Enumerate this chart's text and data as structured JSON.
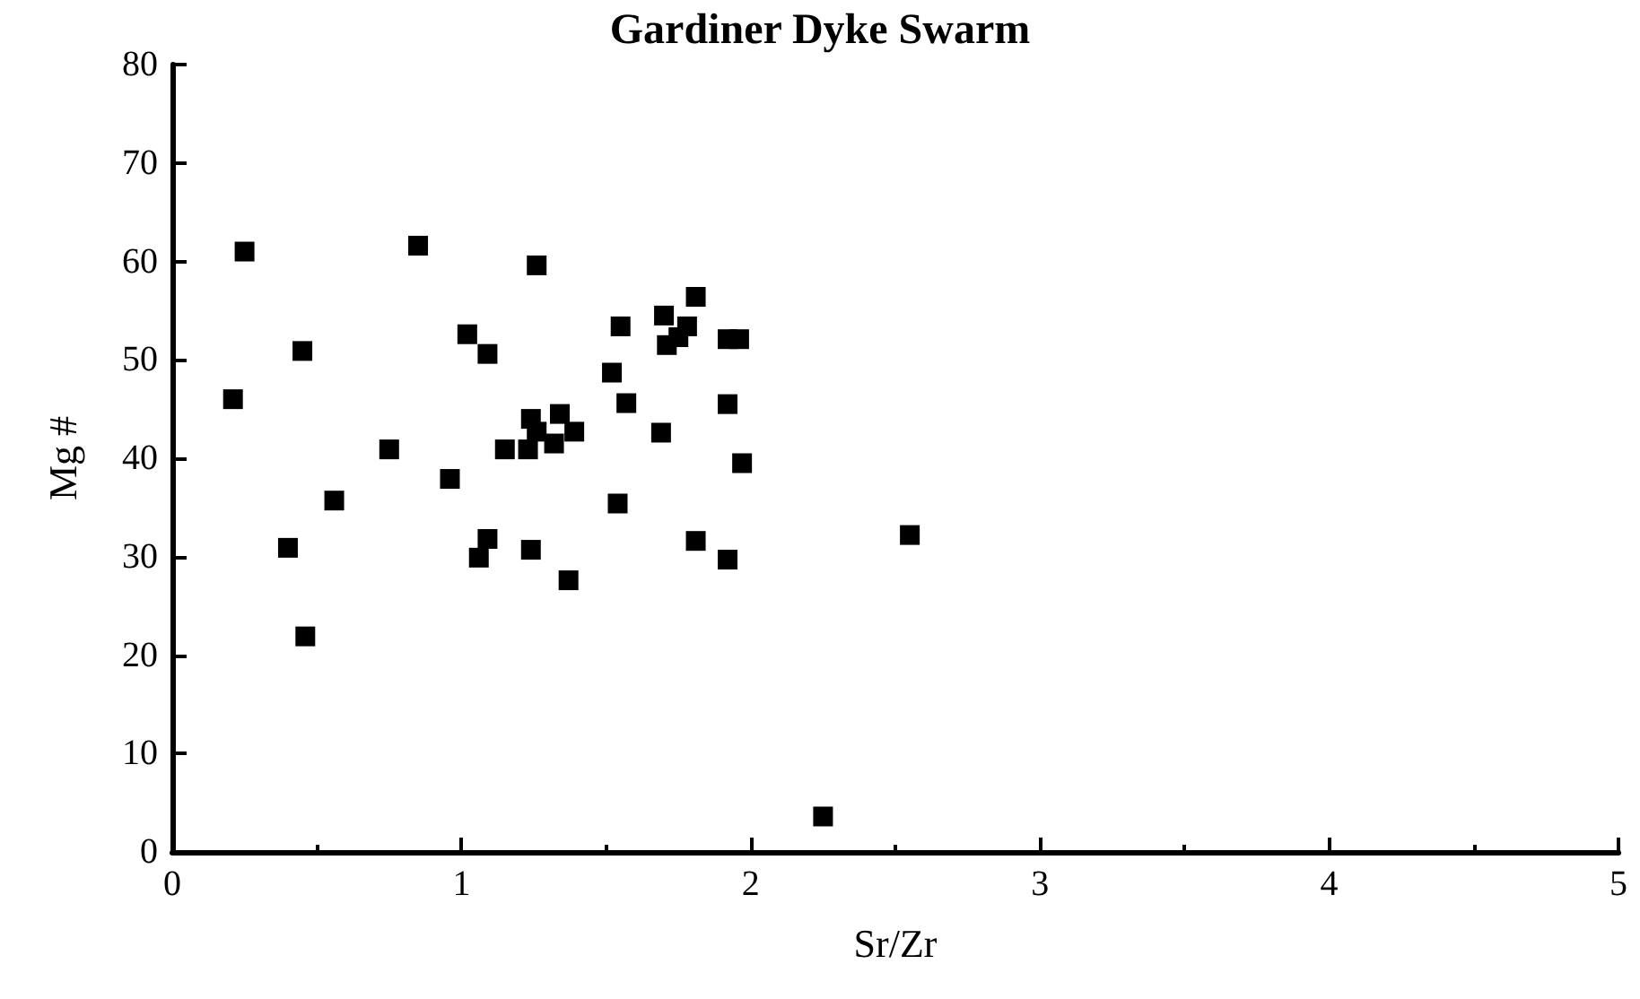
{
  "chart_data": {
    "type": "scatter",
    "title": "Gardiner Dyke Swarm",
    "xlabel": "Sr/Zr",
    "ylabel": "Mg #",
    "x": [
      0.25,
      0.85,
      1.26,
      1.81,
      1.7,
      1.55,
      1.78,
      1.75,
      1.71,
      1.92,
      1.96,
      1.02,
      1.09,
      0.45,
      1.52,
      0.21,
      1.57,
      1.92,
      1.34,
      1.24,
      1.26,
      1.39,
      1.69,
      1.32,
      1.15,
      1.23,
      0.75,
      1.97,
      0.96,
      0.56,
      1.54,
      2.55,
      0.4,
      1.09,
      1.06,
      1.24,
      1.37,
      1.81,
      1.92,
      0.46,
      2.25
    ],
    "series": [
      {
        "color": "#000000",
        "values": [
          61.0,
          61.6,
          59.6,
          56.4,
          54.5,
          53.4,
          53.4,
          52.3,
          51.5,
          52.1,
          52.1,
          52.6,
          50.6,
          50.9,
          48.7,
          46.0,
          45.6,
          45.5,
          44.5,
          44.0,
          42.7,
          42.7,
          42.6,
          41.5,
          40.9,
          40.9,
          40.9,
          39.5,
          37.9,
          35.7,
          35.4,
          32.2,
          30.9,
          31.8,
          29.9,
          30.7,
          27.6,
          31.6,
          29.7,
          21.9,
          3.6
        ]
      }
    ],
    "xlim": [
      0,
      5
    ],
    "xticks": [
      0,
      1,
      2,
      3,
      4,
      5
    ],
    "ylim": [
      0,
      80
    ],
    "yticks": [
      0,
      10,
      20,
      30,
      40,
      50,
      60,
      70,
      80
    ],
    "marker": "square",
    "grid": false
  }
}
